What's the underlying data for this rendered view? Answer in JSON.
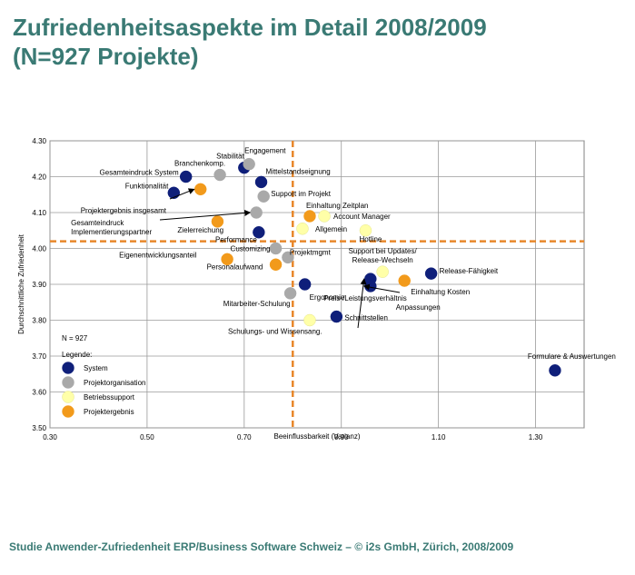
{
  "page": {
    "title_line1": "Zufriedenheitsaspekte im Detail 2008/2009",
    "title_line2": "(N=927 Projekte)",
    "footer": "Studie Anwender-Zufriedenheit ERP/Business Software Schweiz – © i2s GmbH, Zürich, 2008/2009"
  },
  "chart_data": {
    "type": "scatter",
    "title": "",
    "xlabel": "Beeinflussbarkeit (Varianz)",
    "ylabel": "Durchschnittliche Zufriedenheit",
    "xlim": [
      0.3,
      1.4
    ],
    "ylim": [
      3.5,
      4.3
    ],
    "x_ticks": [
      "0.30",
      "0.50",
      "0.70",
      "0.90",
      "1.10",
      "1.30"
    ],
    "y_ticks": [
      "3.50",
      "3.60",
      "3.70",
      "3.80",
      "3.90",
      "4.00",
      "4.10",
      "4.20",
      "4.30"
    ],
    "grid": true,
    "reference_lines": {
      "x": 0.8,
      "y": 4.02,
      "color": "#e8872a"
    },
    "note": "N = 927",
    "legend_title": "Legende:",
    "legend_position": "bottom-left",
    "series": [
      {
        "name": "System",
        "color": "#0f1f7a",
        "points": [
          {
            "label": "Gesamteindruck System",
            "x": 0.58,
            "y": 4.2
          },
          {
            "label": "Funktionalität",
            "x": 0.555,
            "y": 4.155
          },
          {
            "label": "Stabilität",
            "x": 0.7,
            "y": 4.225
          },
          {
            "label": "Mittelstandseignung",
            "x": 0.735,
            "y": 4.185
          },
          {
            "label": "Performance",
            "x": 0.73,
            "y": 4.045
          },
          {
            "label": "Ergonomie",
            "x": 0.825,
            "y": 3.9
          },
          {
            "label": "Schnittstellen",
            "x": 0.89,
            "y": 3.81
          },
          {
            "label": "Preis-/Leistungsverhältnis",
            "x": 0.96,
            "y": 3.915
          },
          {
            "label": "Anpassungen",
            "x": 0.96,
            "y": 3.895
          },
          {
            "label": "Release-Fähigkeit",
            "x": 1.085,
            "y": 3.93
          },
          {
            "label": "Formulare & Auswertungen",
            "x": 1.34,
            "y": 3.66
          }
        ]
      },
      {
        "name": "Projektorganisation",
        "color": "#a9a9a9",
        "points": [
          {
            "label": "Branchenkomp.",
            "x": 0.65,
            "y": 4.205
          },
          {
            "label": "Engagement",
            "x": 0.71,
            "y": 4.235
          },
          {
            "label": "Support im Projekt",
            "x": 0.74,
            "y": 4.145
          },
          {
            "label": "Gesamteindruck Implementierungspartner",
            "x": 0.725,
            "y": 4.1
          },
          {
            "label": "Customizing",
            "x": 0.765,
            "y": 4.0
          },
          {
            "label": "Projektmgmt",
            "x": 0.79,
            "y": 3.975
          },
          {
            "label": "Mitarbeiter-Schulung",
            "x": 0.795,
            "y": 3.875
          }
        ]
      },
      {
        "name": "Betriebssupport",
        "color": "#ffffa8",
        "points": [
          {
            "label": "Allgemein",
            "x": 0.82,
            "y": 4.055
          },
          {
            "label": "Account Manager",
            "x": 0.865,
            "y": 4.09
          },
          {
            "label": "Hotline",
            "x": 0.95,
            "y": 4.05
          },
          {
            "label": "Support bei Updates/ Release-Wechseln",
            "x": 0.985,
            "y": 3.935
          },
          {
            "label": "Schulungs- und Wissensang.",
            "x": 0.835,
            "y": 3.8
          }
        ]
      },
      {
        "name": "Projektergebnis",
        "color": "#f29a1b",
        "points": [
          {
            "label": "Projektergebnis insgesamt",
            "x": 0.61,
            "y": 4.165
          },
          {
            "label": "Zielerreichung",
            "x": 0.645,
            "y": 4.075
          },
          {
            "label": "Einhaltung Zeitplan",
            "x": 0.835,
            "y": 4.09
          },
          {
            "label": "Eigenentwicklungsanteil",
            "x": 0.665,
            "y": 3.97
          },
          {
            "label": "Personalaufwand",
            "x": 0.765,
            "y": 3.955
          },
          {
            "label": "Einhaltung Kosten",
            "x": 1.03,
            "y": 3.91
          }
        ]
      }
    ]
  }
}
